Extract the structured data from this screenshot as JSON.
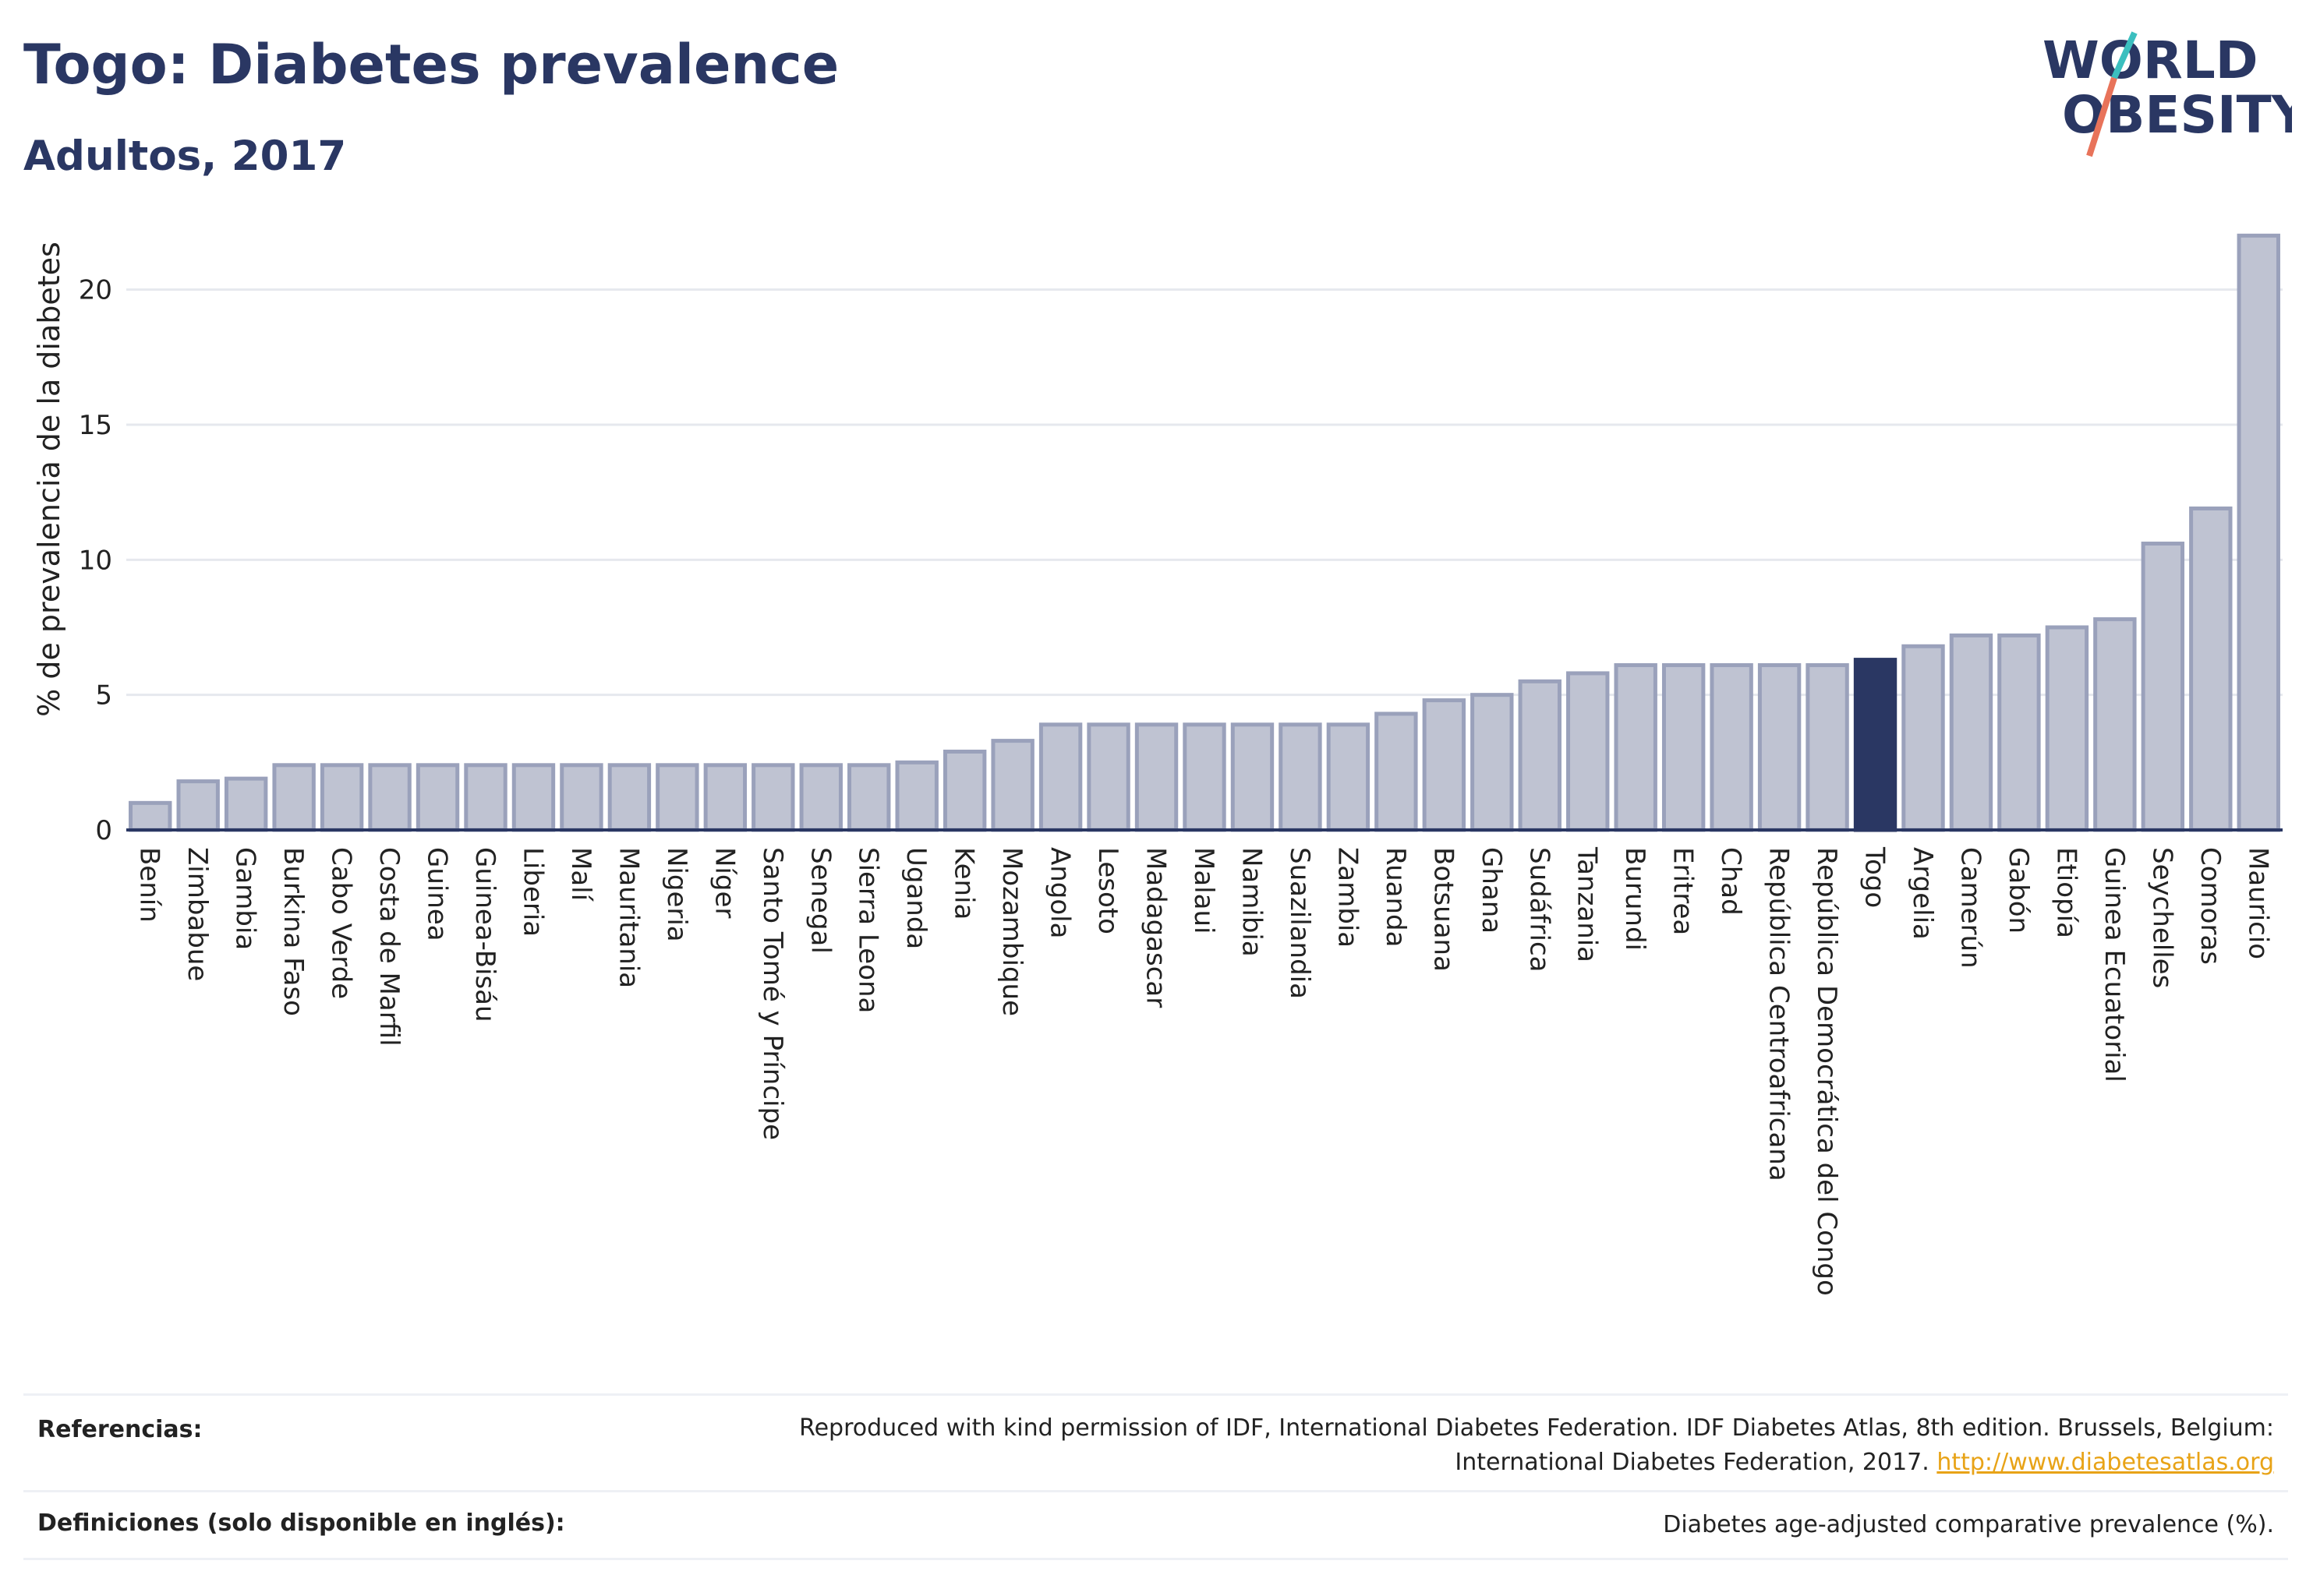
{
  "header": {
    "title": "Togo: Diabetes prevalence",
    "subtitle": "Adultos, 2017"
  },
  "logo": {
    "line1": "WORLD",
    "line2": "OBESITY",
    "slash_colors": [
      "#3bbfbf",
      "#e8735a"
    ]
  },
  "colors": {
    "bar_fill": "#bfc3d2",
    "bar_stroke": "#9aa1bb",
    "highlight": "#2a3763",
    "grid": "#e6e8ee"
  },
  "chart_data": {
    "type": "bar",
    "title": "Togo: Diabetes prevalence",
    "subtitle": "Adultos, 2017",
    "xlabel": "",
    "ylabel": "% de prevalencia de la diabetes",
    "ylim": [
      0,
      22.5
    ],
    "yticks": [
      0,
      5,
      10,
      15,
      20
    ],
    "grid": true,
    "highlight_category": "Togo",
    "categories": [
      "Benín",
      "Zimbabue",
      "Gambia",
      "Burkina Faso",
      "Cabo Verde",
      "Costa de Marfil",
      "Guinea",
      "Guinea-Bisáu",
      "Liberia",
      "Malí",
      "Mauritania",
      "Nigeria",
      "Níger",
      "Santo Tomé y Príncipe",
      "Senegal",
      "Sierra Leona",
      "Uganda",
      "Kenia",
      "Mozambique",
      "Angola",
      "Lesoto",
      "Madagascar",
      "Malaui",
      "Namibia",
      "Suazilandia",
      "Zambia",
      "Ruanda",
      "Botsuana",
      "Ghana",
      "Sudáfrica",
      "Tanzania",
      "Burundi",
      "Eritrea",
      "Chad",
      "República Centroafricana",
      "República Democrática del Congo",
      "Togo",
      "Argelia",
      "Camerún",
      "Gabón",
      "Etiopía",
      "Guinea Ecuatorial",
      "Seychelles",
      "Comoras",
      "Mauricio"
    ],
    "values": [
      1.0,
      1.8,
      1.9,
      2.4,
      2.4,
      2.4,
      2.4,
      2.4,
      2.4,
      2.4,
      2.4,
      2.4,
      2.4,
      2.4,
      2.4,
      2.4,
      2.5,
      2.9,
      3.3,
      3.9,
      3.9,
      3.9,
      3.9,
      3.9,
      3.9,
      3.9,
      4.3,
      4.8,
      5.0,
      5.5,
      5.8,
      6.1,
      6.1,
      6.1,
      6.1,
      6.1,
      6.3,
      6.8,
      7.2,
      7.2,
      7.5,
      7.8,
      10.6,
      11.9,
      22.0
    ]
  },
  "footer": {
    "references_label": "Referencias:",
    "references_text_line1": "Reproduced with kind permission of IDF, International Diabetes Federation. IDF Diabetes Atlas, 8th edition. Brussels, Belgium:",
    "references_text_line2": "International Diabetes Federation, 2017.",
    "references_link": "http://www.diabetesatlas.org",
    "definitions_label": "Definiciones (solo disponible en inglés):",
    "definitions_text": "Diabetes age-adjusted comparative prevalence (%)."
  }
}
